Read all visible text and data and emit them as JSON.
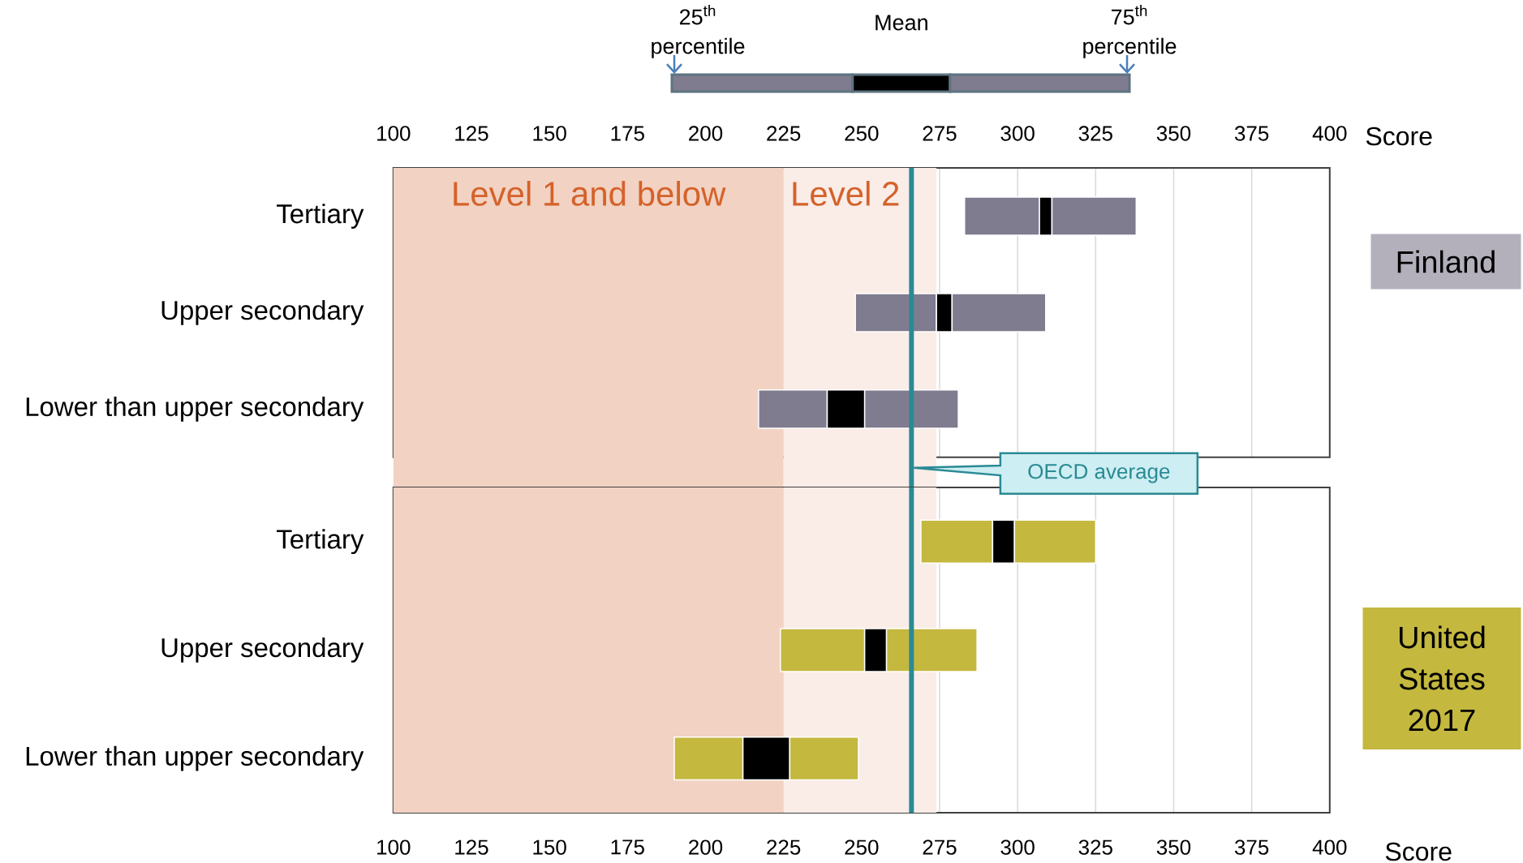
{
  "chart_data": [
    {
      "type": "bar",
      "orientation": "horizontal",
      "xlabel": "Score",
      "annotations": [
        "Finland"
      ],
      "categories": [
        "Tertiary",
        "Upper secondary",
        "Lower than upper secondary"
      ],
      "series": [
        {
          "name": "25$^{th}$ percentile",
          "color": "#807c8f",
          "base": [
            283,
            248,
            217
          ],
          "values": [
            24,
            26,
            22
          ]
        },
        {
          "name": "Mean",
          "color": "#000000",
          "base": [
            307,
            274,
            239
          ],
          "values": [
            4,
            5,
            12
          ]
        },
        {
          "name": "75$^{th}$ percentile",
          "color": "#807c8f",
          "base": [
            311,
            279,
            251
          ],
          "values": [
            27,
            30,
            30
          ]
        }
      ],
      "xlim": [
        100,
        400
      ],
      "xticks": [
        100,
        125,
        150,
        175,
        200,
        225,
        250,
        275,
        300,
        325,
        350,
        375,
        400
      ],
      "grid": "x",
      "legend": "top",
      "bands": [
        {
          "axis": "x",
          "from": 100,
          "to": 225,
          "label": "Level 1 and below",
          "color": "#f2d2c3"
        },
        {
          "axis": "x",
          "from": 225,
          "to": 274,
          "label": "Level 2",
          "color": "#faece7"
        }
      ],
      "ref_lines": [
        {
          "axis": "x",
          "value": 266,
          "label": "OECD average",
          "color": "#2a8a94"
        }
      ]
    },
    {
      "type": "bar",
      "orientation": "horizontal",
      "xlabel": "Score",
      "annotations": [
        "United States 2017"
      ],
      "categories": [
        "Tertiary",
        "Upper secondary",
        "Lower than upper secondary"
      ],
      "series": [
        {
          "color": "#c4b83f",
          "base": [
            269,
            224,
            190
          ],
          "values": [
            23,
            27,
            22
          ]
        },
        {
          "color": "#000000",
          "base": [
            292,
            251,
            212
          ],
          "values": [
            7,
            7,
            15
          ]
        },
        {
          "color": "#c4b83f",
          "base": [
            299,
            258,
            227
          ],
          "values": [
            26,
            29,
            22
          ]
        }
      ],
      "xlim": [
        100,
        400
      ],
      "xticks": [
        100,
        125,
        150,
        175,
        200,
        225,
        250,
        275,
        300,
        325,
        350,
        375,
        400
      ],
      "grid": "x",
      "bands": [
        {
          "axis": "x",
          "from": 100,
          "to": 225,
          "color": "#f2d2c3"
        },
        {
          "axis": "x",
          "from": 225,
          "to": 274,
          "color": "#faece7"
        }
      ],
      "ref_lines": [
        {
          "axis": "x",
          "value": 266,
          "color": "#2a8a94"
        }
      ]
    }
  ]
}
